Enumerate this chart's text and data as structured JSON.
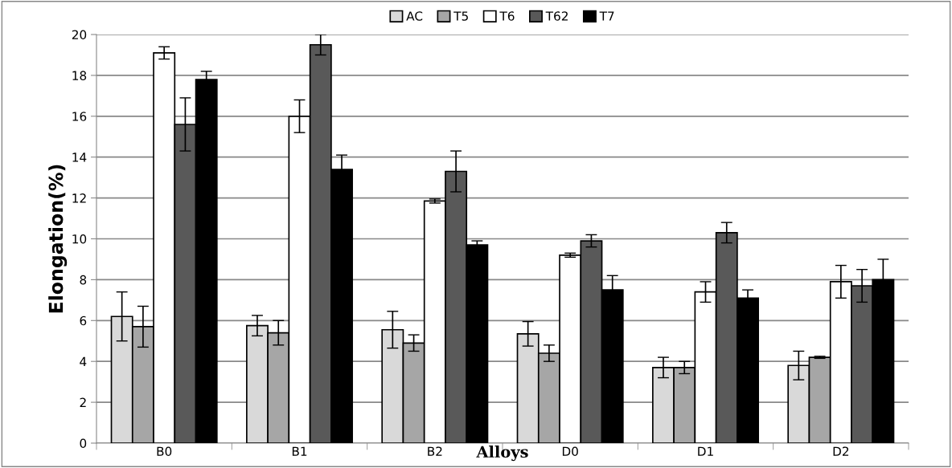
{
  "chart_data": {
    "type": "bar",
    "xlabel": "Alloys",
    "ylabel": "Elongation(%)",
    "categories": [
      "B0",
      "B1",
      "B2",
      "D0",
      "D1",
      "D2"
    ],
    "series": [
      {
        "name": "AC",
        "color": "#d9d9d9",
        "values": [
          6.2,
          5.75,
          5.55,
          5.35,
          3.7,
          3.8
        ],
        "errors": [
          1.2,
          0.5,
          0.9,
          0.6,
          0.5,
          0.7
        ]
      },
      {
        "name": "T5",
        "color": "#a6a6a6",
        "values": [
          5.7,
          5.4,
          4.9,
          4.4,
          3.7,
          4.2
        ],
        "errors": [
          1.0,
          0.6,
          0.4,
          0.4,
          0.3,
          0.05
        ]
      },
      {
        "name": "T6",
        "color": "#ffffff",
        "values": [
          19.1,
          16.0,
          11.85,
          9.2,
          7.4,
          7.9
        ],
        "errors": [
          0.3,
          0.8,
          0.1,
          0.1,
          0.5,
          0.8
        ]
      },
      {
        "name": "T62",
        "color": "#595959",
        "values": [
          15.6,
          19.5,
          13.3,
          9.9,
          10.3,
          7.7
        ],
        "errors": [
          1.3,
          0.5,
          1.0,
          0.3,
          0.5,
          0.8
        ]
      },
      {
        "name": "T7",
        "color": "#000000",
        "values": [
          17.8,
          13.4,
          9.7,
          7.5,
          7.1,
          8.0
        ],
        "errors": [
          0.4,
          0.7,
          0.2,
          0.7,
          0.4,
          1.0
        ]
      }
    ],
    "ylim": [
      0,
      20
    ],
    "yticks": [
      0,
      2,
      4,
      6,
      8,
      10,
      12,
      14,
      16,
      18,
      20
    ],
    "grid": "y",
    "legend": "top"
  }
}
